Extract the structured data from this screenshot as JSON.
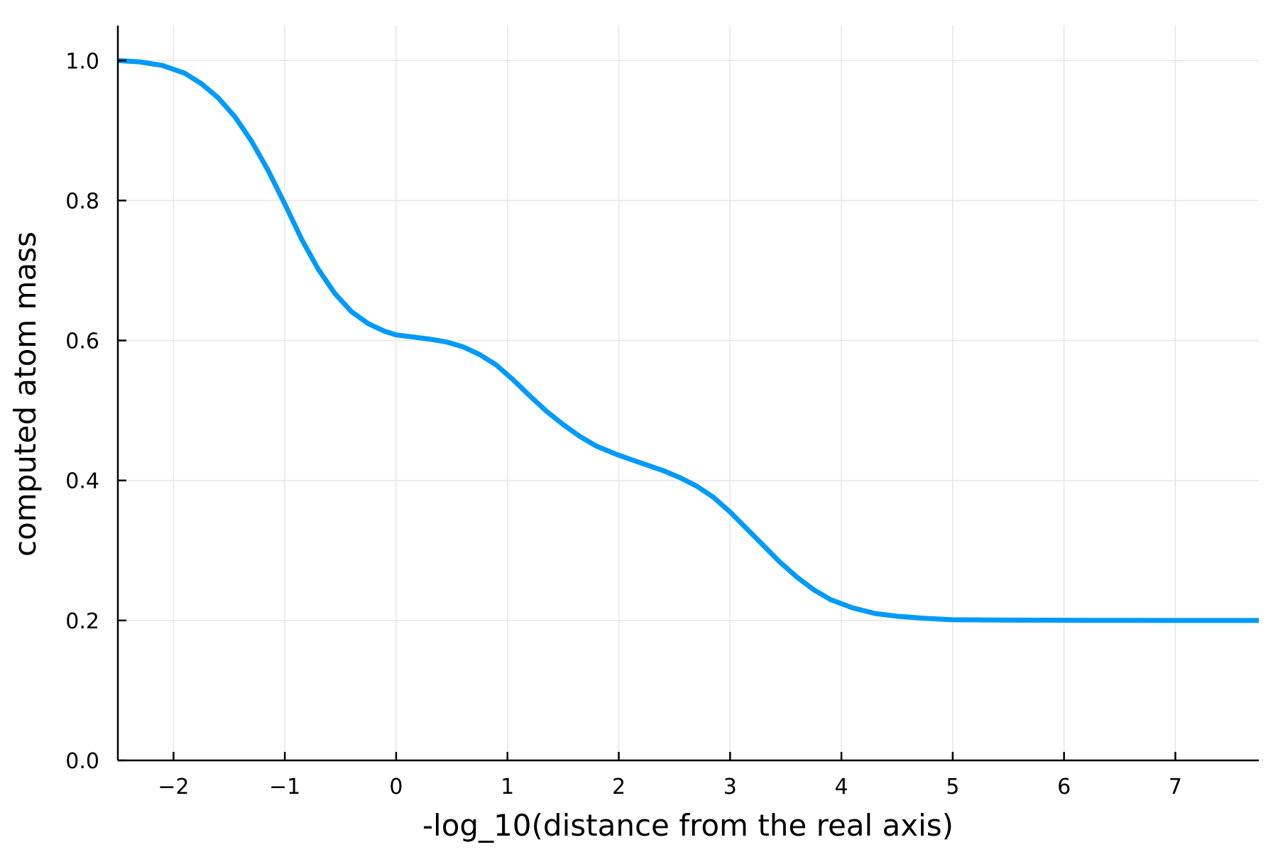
{
  "chart_data": {
    "type": "line",
    "title": "",
    "xlabel": "-log_10(distance from the real axis)",
    "ylabel": "computed atom mass",
    "xlim": [
      -2.5,
      7.75
    ],
    "ylim": [
      0.0,
      1.05
    ],
    "grid": true,
    "legend": "none",
    "x_ticks": [
      -2,
      -1,
      0,
      1,
      2,
      3,
      4,
      5,
      6,
      7
    ],
    "x_tick_labels": [
      "−2",
      "−1",
      "0",
      "1",
      "2",
      "3",
      "4",
      "5",
      "6",
      "7"
    ],
    "y_ticks": [
      0.0,
      0.2,
      0.4,
      0.6,
      0.8,
      1.0
    ],
    "y_tick_labels": [
      "0.0",
      "0.2",
      "0.4",
      "0.6",
      "0.8",
      "1.0"
    ],
    "series": [
      {
        "color": "#009af9",
        "x": [
          -2.5,
          -2.3,
          -2.1,
          -1.9,
          -1.75,
          -1.6,
          -1.45,
          -1.3,
          -1.15,
          -1.0,
          -0.85,
          -0.7,
          -0.55,
          -0.4,
          -0.25,
          -0.1,
          0.0,
          0.15,
          0.3,
          0.45,
          0.6,
          0.75,
          0.9,
          1.05,
          1.2,
          1.35,
          1.5,
          1.65,
          1.8,
          2.0,
          2.2,
          2.4,
          2.55,
          2.7,
          2.85,
          3.0,
          3.15,
          3.3,
          3.45,
          3.6,
          3.75,
          3.9,
          4.1,
          4.3,
          4.5,
          4.75,
          5.0,
          5.5,
          6.0,
          6.5,
          7.0,
          7.75
        ],
        "y": [
          1.0,
          0.998,
          0.993,
          0.982,
          0.967,
          0.947,
          0.92,
          0.885,
          0.843,
          0.795,
          0.745,
          0.702,
          0.667,
          0.641,
          0.624,
          0.613,
          0.608,
          0.605,
          0.602,
          0.598,
          0.591,
          0.58,
          0.565,
          0.544,
          0.521,
          0.499,
          0.48,
          0.463,
          0.449,
          0.436,
          0.425,
          0.414,
          0.404,
          0.392,
          0.376,
          0.355,
          0.331,
          0.307,
          0.283,
          0.262,
          0.244,
          0.23,
          0.218,
          0.21,
          0.206,
          0.203,
          0.201,
          0.2005,
          0.2002,
          0.2001,
          0.2,
          0.2
        ]
      }
    ]
  }
}
